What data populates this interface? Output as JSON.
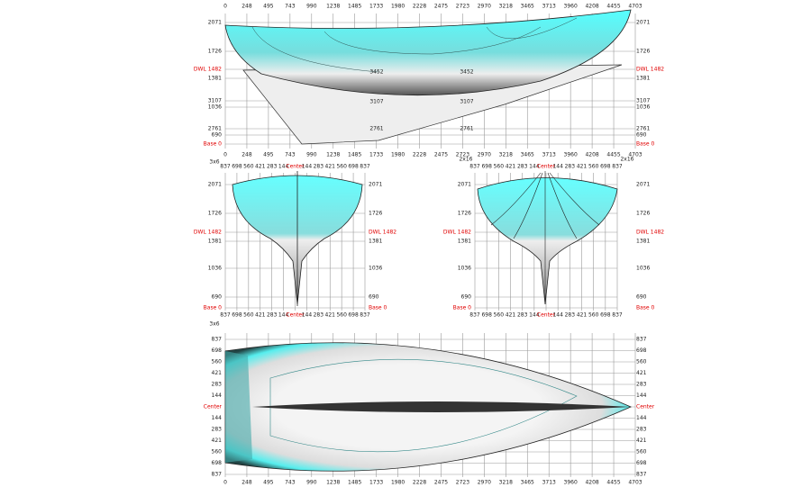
{
  "profile": {
    "x_labels_top": [
      "0",
      "248",
      "495",
      "743",
      "990",
      "1238",
      "1485",
      "1733",
      "1980",
      "2228",
      "2475",
      "2723",
      "2970",
      "3218",
      "3465",
      "3713",
      "3960",
      "4208",
      "4455",
      "4703"
    ],
    "x_labels_bottom": [
      "0",
      "248",
      "495",
      "743",
      "990",
      "1238",
      "1485",
      "1733",
      "1980",
      "2228",
      "2475",
      "2723",
      "2970",
      "3218",
      "3465",
      "3713",
      "3960",
      "4208",
      "4455",
      "4703"
    ],
    "y_labels_left": [
      "2071",
      "1726",
      "DWL 1482",
      "1381",
      "3107",
      "1036",
      "2761",
      "690",
      "Base 0"
    ],
    "y_labels_right": [
      "2071",
      "1726",
      "DWL 1482",
      "1381",
      "3107",
      "1036",
      "2761",
      "690",
      "Base 0"
    ],
    "inner_labels": [
      "3452",
      "3452",
      "3107",
      "3107",
      "2761",
      "2761"
    ],
    "corner_left": "3x6",
    "corner_right": "2x16"
  },
  "body_left": {
    "x_labels_top": [
      "837",
      "698",
      "560",
      "421",
      "283",
      "144",
      "Center",
      "144",
      "283",
      "421",
      "560",
      "698",
      "837"
    ],
    "x_labels_bottom": [
      "837",
      "698",
      "560",
      "421",
      "283",
      "144",
      "Center",
      "144",
      "283",
      "421",
      "560",
      "698",
      "837"
    ],
    "y_labels_left": [
      "2071",
      "1726",
      "DWL 1482",
      "1381",
      "1036",
      "690",
      "Base 0"
    ],
    "y_labels_right": [
      "2071",
      "1726",
      "DWL 1482",
      "1381",
      "1036",
      "690",
      "Base 0"
    ]
  },
  "body_right": {
    "x_labels_top": [
      "837",
      "698",
      "560",
      "421",
      "283",
      "144",
      "Center",
      "144",
      "283",
      "421",
      "560",
      "698",
      "837"
    ],
    "x_labels_bottom": [
      "837",
      "698",
      "560",
      "421",
      "283",
      "144",
      "Center",
      "144",
      "283",
      "421",
      "560",
      "698",
      "837"
    ],
    "y_labels_left": [
      "2071",
      "1726",
      "DWL 1482",
      "1381",
      "1036",
      "690",
      "Base 0"
    ],
    "y_labels_right": [
      "2071",
      "1726",
      "DWL 1482",
      "1381",
      "1036",
      "690",
      "Base 0"
    ],
    "corner_left": "3x6",
    "corner_right": "2x16"
  },
  "plan": {
    "x_labels_bottom": [
      "0",
      "248",
      "495",
      "743",
      "990",
      "1238",
      "1485",
      "1733",
      "1980",
      "2228",
      "2475",
      "2723",
      "2970",
      "3218",
      "3465",
      "3713",
      "3960",
      "4208",
      "4455",
      "4703"
    ],
    "y_labels_left": [
      "837",
      "698",
      "560",
      "421",
      "283",
      "144",
      "Center",
      "144",
      "283",
      "421",
      "560",
      "698",
      "837"
    ],
    "y_labels_right": [
      "837",
      "698",
      "560",
      "421",
      "283",
      "144",
      "Center",
      "144",
      "283",
      "421",
      "560",
      "698",
      "837"
    ]
  }
}
